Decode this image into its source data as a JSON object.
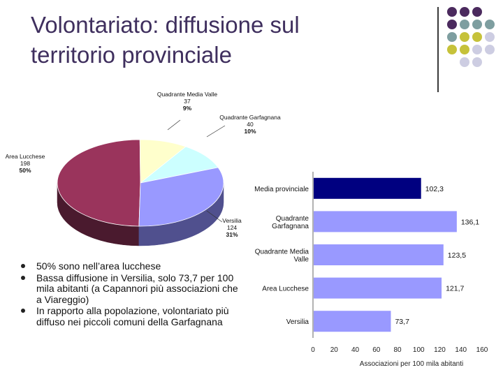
{
  "slide": {
    "title_line1": "Volontariato: diffusione sul",
    "title_line2": "territorio provinciale",
    "bullets": [
      "50% sono nell’area lucchese",
      "Bassa diffusione in Versilia, solo 73,7 per 100 mila abitanti (a Capannori più associazioni che a Viareggio)",
      "In rapporto alla popolazione, volontariato più diffuso nei piccoli comuni della Garfagnana"
    ],
    "accent_colors": {
      "purple": "#4b2a5e",
      "teal": "#7e9ea0",
      "olive": "#c6c23a",
      "lavender": "#cdcde2"
    }
  },
  "chart_data": [
    {
      "type": "pie",
      "slices": [
        {
          "label_lines": [
            "Area Lucchese"
          ],
          "value_text": "198",
          "pct_text": "50%",
          "value": 198,
          "color": "#9a345c",
          "side": "#4a1a2e"
        },
        {
          "label_lines": [
            "Quadrante Media Valle"
          ],
          "value_text": "37",
          "pct_text": "9%",
          "value": 37,
          "color": "#ffffcc",
          "side": "#a8a884"
        },
        {
          "label_lines": [
            "Quadrante Garfagnana"
          ],
          "value_text": "40",
          "pct_text": "10%",
          "value": 40,
          "color": "#ccffff",
          "side": "#88a8a8"
        },
        {
          "label_lines": [
            "Versilia"
          ],
          "value_text": "124",
          "pct_text": "31%",
          "value": 124,
          "color": "#9999ff",
          "side": "#50508e"
        }
      ]
    },
    {
      "type": "bar",
      "orientation": "horizontal",
      "categories": [
        [
          "Media provinciale"
        ],
        [
          "Quadrante",
          "Garfagnana"
        ],
        [
          "Quadrante Media",
          "Valle"
        ],
        [
          "Area Lucchese"
        ],
        [
          "Versilia"
        ]
      ],
      "values": [
        102.3,
        136.1,
        123.5,
        121.7,
        73.7
      ],
      "value_labels": [
        "102,3",
        "136,1",
        "123,5",
        "121,7",
        "73,7"
      ],
      "colors": [
        "#000080",
        "#9999ff",
        "#9999ff",
        "#9999ff",
        "#9999ff"
      ],
      "highlight_label_color": "#ffffff",
      "xlim": [
        0,
        160
      ],
      "xticks": [
        0,
        20,
        40,
        60,
        80,
        100,
        120,
        140,
        160
      ],
      "xlabel": "Associazioni per 100 mila abitanti"
    }
  ]
}
